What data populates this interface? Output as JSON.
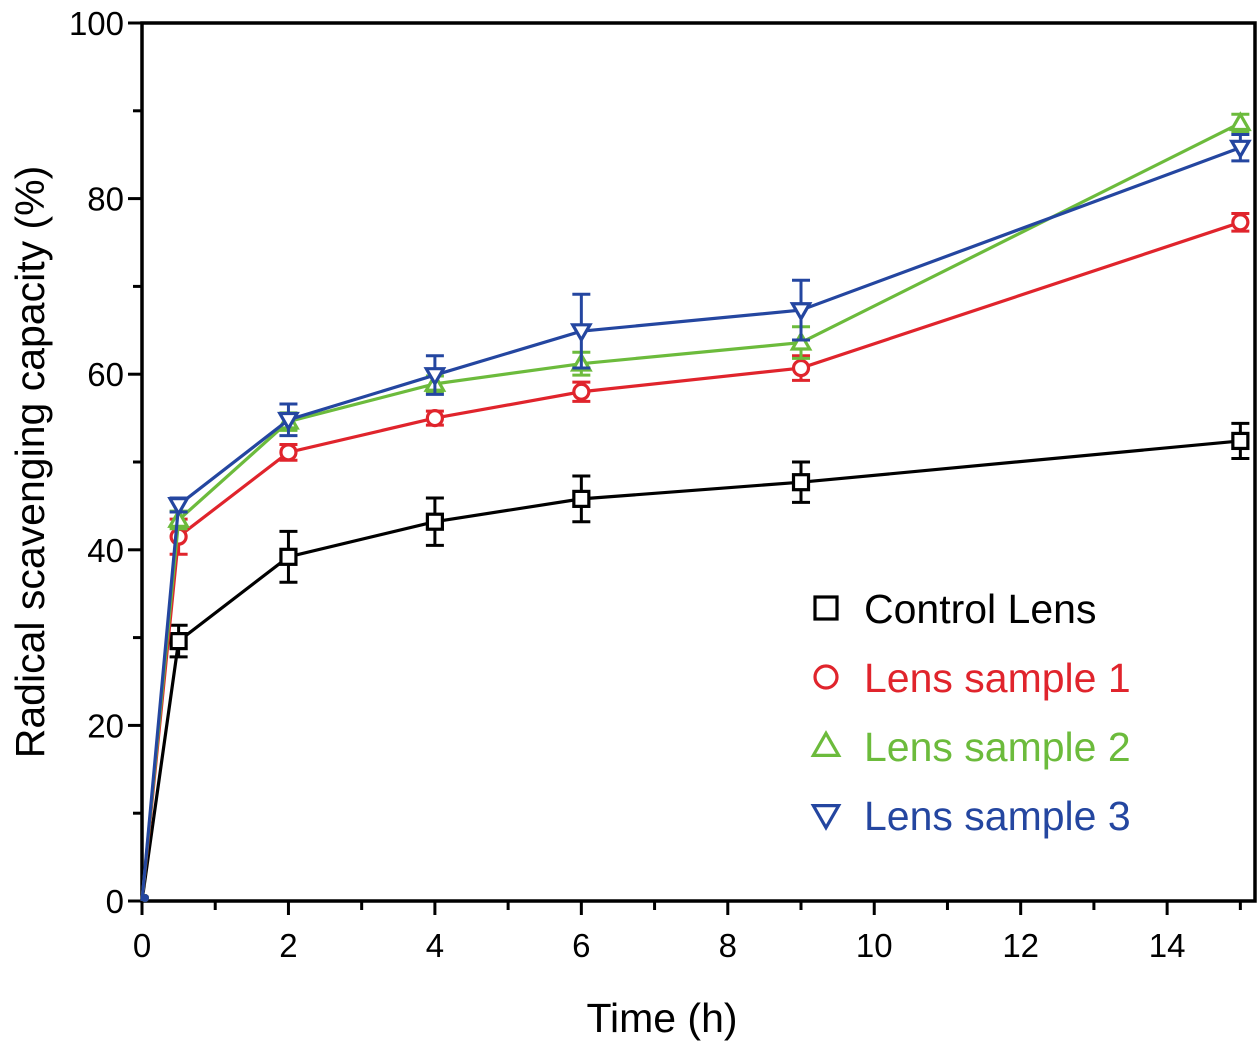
{
  "chart_data": {
    "type": "line",
    "title": "",
    "xlabel": "Time (h)",
    "ylabel": "Radical scavenging capacity (%)",
    "xlim": [
      0,
      15.2
    ],
    "ylim": [
      0,
      100
    ],
    "x_ticks": [
      0,
      2,
      4,
      6,
      8,
      10,
      12,
      14
    ],
    "x_tick_labels": [
      "0",
      "2",
      "4",
      "6",
      "8",
      "10",
      "12",
      "14"
    ],
    "x_minor_ticks": [
      1,
      3,
      5,
      7,
      9,
      11,
      13,
      15
    ],
    "y_ticks": [
      0,
      20,
      40,
      60,
      80,
      100
    ],
    "y_tick_labels": [
      "0",
      "20",
      "40",
      "60",
      "80",
      "100"
    ],
    "y_minor_ticks": [
      10,
      30,
      50,
      70,
      90
    ],
    "grid": false,
    "legend_position": "bottom-right",
    "x": [
      0,
      0.5,
      2,
      4,
      6,
      9,
      15
    ],
    "series": [
      {
        "name": "Control Lens",
        "marker": "square",
        "color": "#000000",
        "values": [
          0,
          29.6,
          39.2,
          43.2,
          45.8,
          47.7,
          52.4
        ],
        "errors": [
          0,
          1.8,
          2.9,
          2.7,
          2.6,
          2.3,
          2.0
        ]
      },
      {
        "name": "Lens sample 1",
        "marker": "circle",
        "color": "#e0242c",
        "values": [
          0,
          41.5,
          51.1,
          55.0,
          58.0,
          60.7,
          77.3
        ],
        "errors": [
          0,
          2.0,
          0.9,
          0.8,
          1.1,
          1.4,
          1.0
        ]
      },
      {
        "name": "Lens sample 2",
        "marker": "triangle-up",
        "color": "#6cbb3c",
        "values": [
          0,
          43.4,
          54.6,
          58.9,
          61.2,
          63.6,
          88.6
        ],
        "errors": [
          0,
          1.0,
          1.0,
          0.9,
          1.3,
          1.8,
          1.0
        ]
      },
      {
        "name": "Lens sample 3",
        "marker": "triangle-down",
        "color": "#2446a0",
        "values": [
          0,
          45.1,
          54.8,
          59.9,
          64.9,
          67.3,
          85.8
        ],
        "errors": [
          0,
          0.8,
          1.8,
          2.2,
          4.2,
          3.4,
          1.5
        ]
      }
    ]
  }
}
